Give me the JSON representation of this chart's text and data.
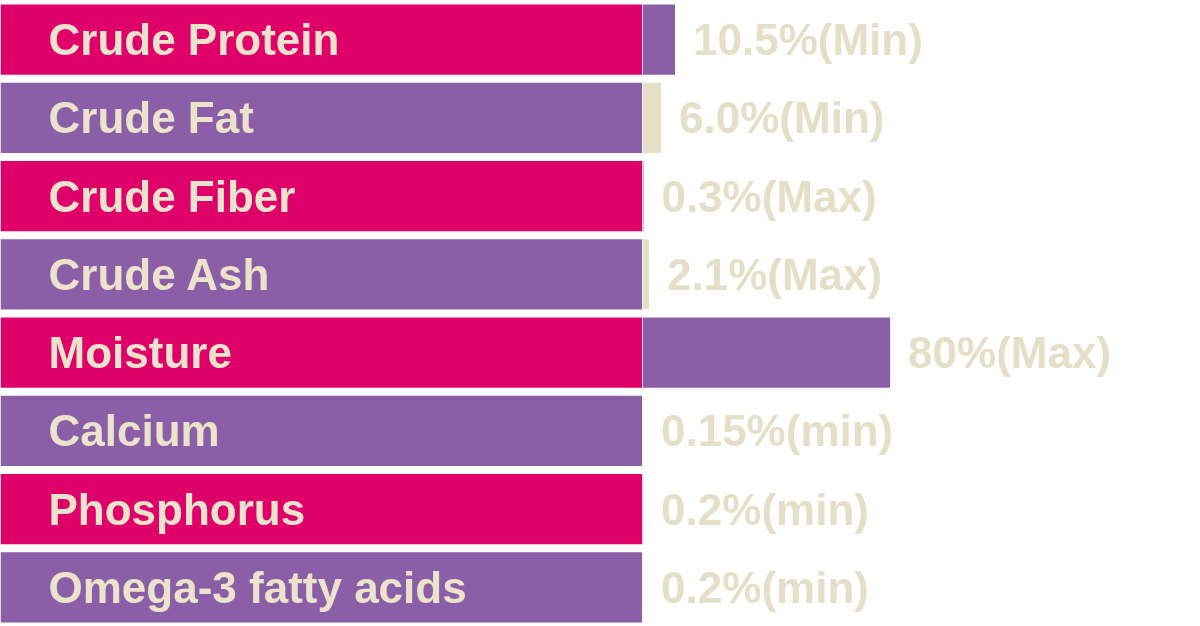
{
  "chart_data": {
    "type": "bar",
    "orientation": "horizontal",
    "categories": [
      "Crude Protein",
      "Crude Fat",
      "Crude Fiber",
      "Crude Ash",
      "Moisture",
      "Calcium",
      "Phosphorus",
      "Omega-3 fatty acids"
    ],
    "values": [
      10.5,
      6.0,
      0.3,
      2.1,
      80,
      0.15,
      0.2,
      0.2
    ],
    "colors": [
      "#8a5fa8",
      "#e6dfc8",
      "#8a5fa8",
      "#e6dfc8",
      "#8a5fa8",
      "#e6dfc8",
      "#8a5fa8",
      "#e6dfc8"
    ],
    "value_labels": [
      "10.5%(Min)",
      "6.0%(Min)",
      "0.3%(Max)",
      "2.1%(Max)",
      "80%(Max)",
      "0.15%(min)",
      "0.2%(min)",
      "0.2%(min)"
    ],
    "grid": false,
    "tick_labels": false
  }
}
